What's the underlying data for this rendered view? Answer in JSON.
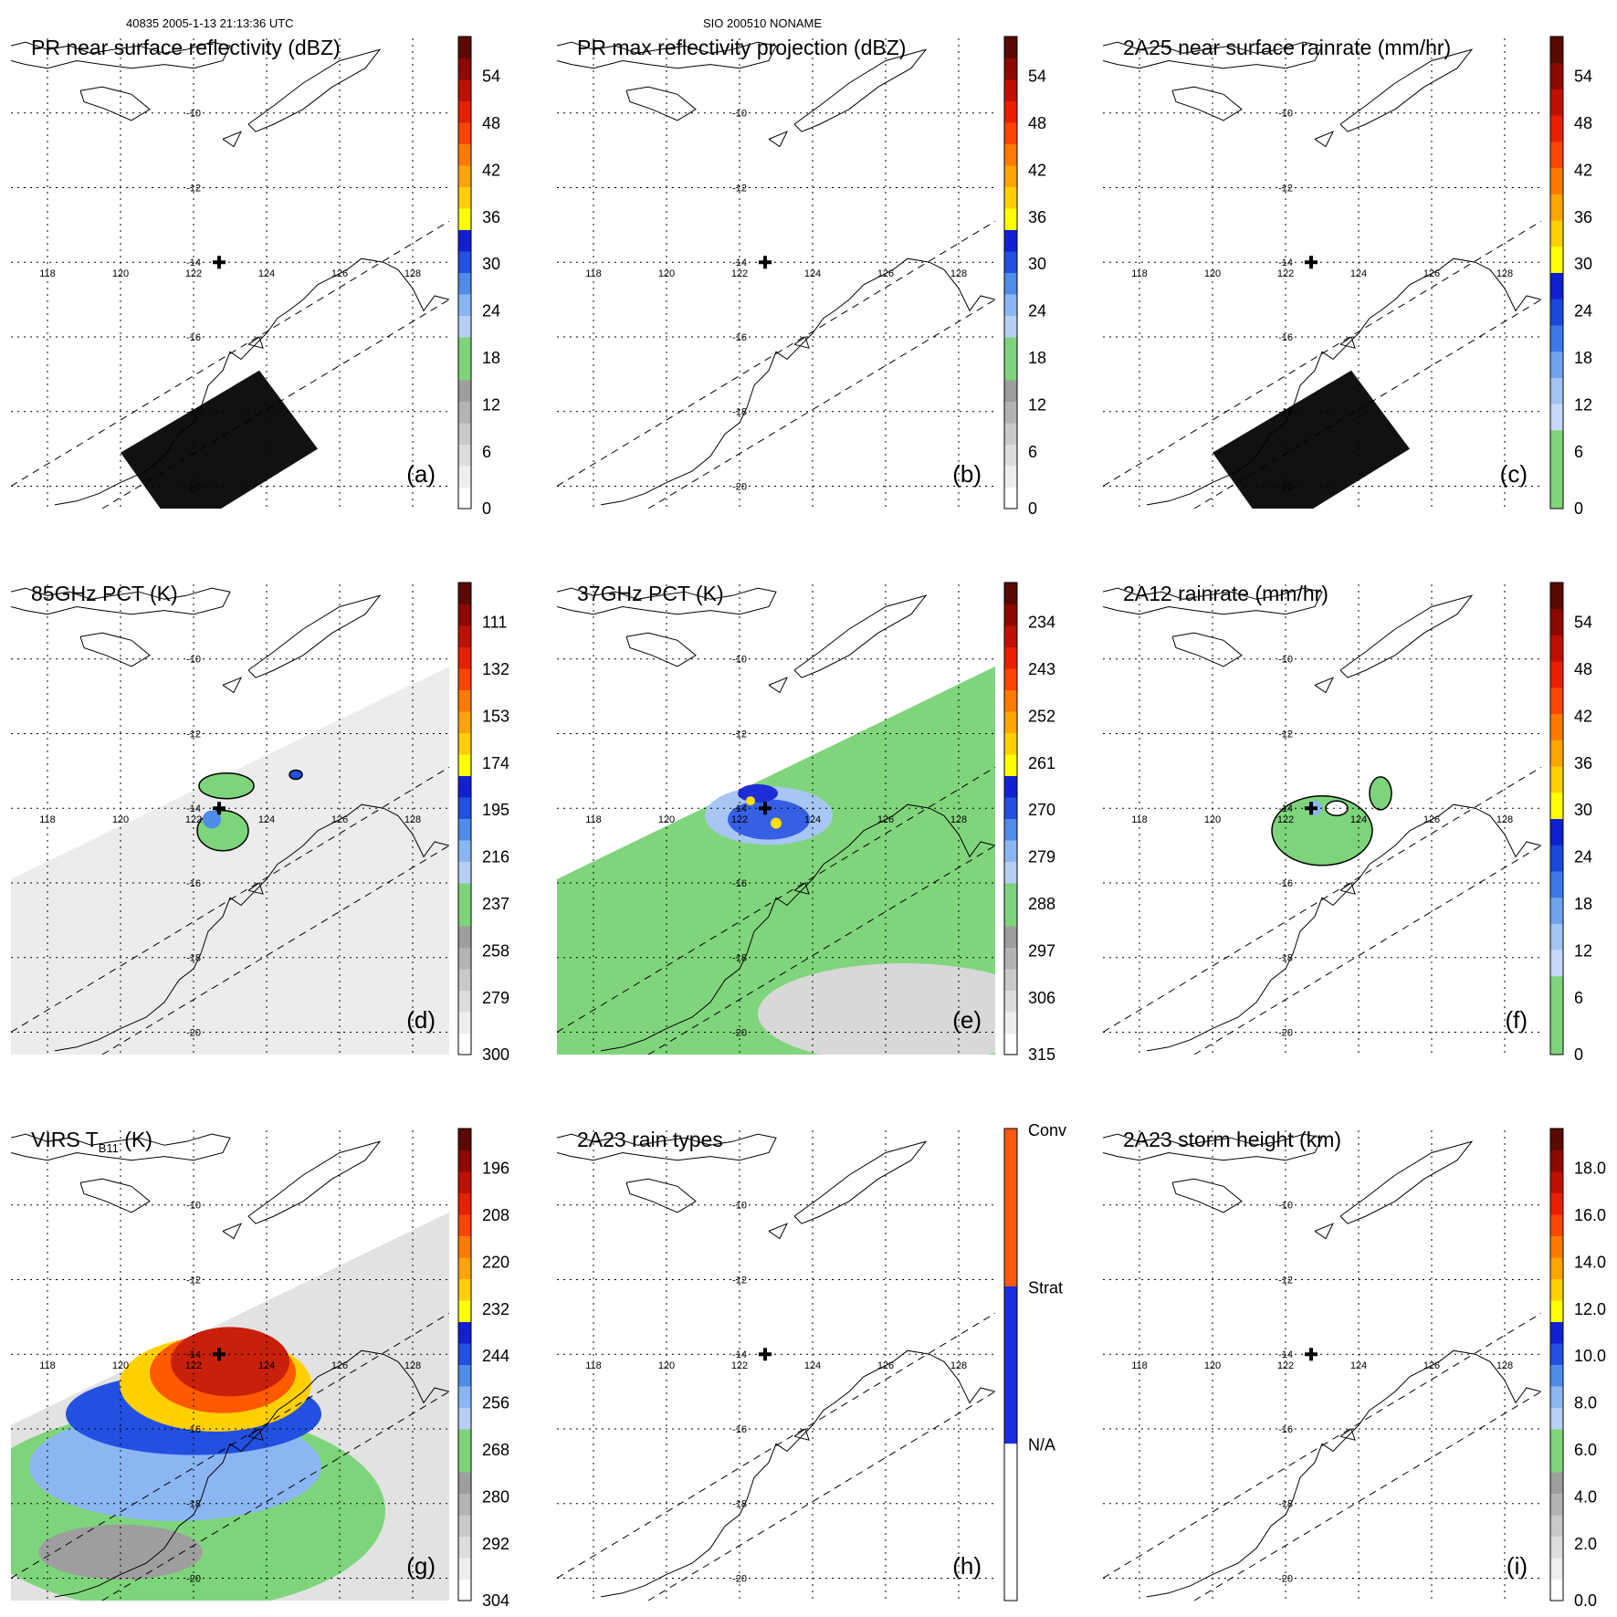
{
  "header": {
    "left": "40835 2005-1-13 21:13:36 UTC",
    "center": "SIO 200510 NONAME"
  },
  "map": {
    "lon_ticks": [
      "118",
      "120",
      "122",
      "124",
      "126",
      "128"
    ],
    "lat_ticks": [
      "-10",
      "-12",
      "-14",
      "-16",
      "-18",
      "-20"
    ],
    "lon_range": [
      117,
      129
    ],
    "lat_range": [
      -8,
      -20.6
    ],
    "storm_center": [
      122.7,
      -14
    ]
  },
  "panels": [
    {
      "id": "a",
      "title": "PR near surface reflectivity (dBZ)",
      "label": "(a)",
      "field": "pr_swath",
      "colorbar": {
        "ticks": [
          "54",
          "48",
          "42",
          "36",
          "30",
          "24",
          "18",
          "12",
          "6",
          "0"
        ],
        "colors": [
          "#ffffff",
          "#eeeeee",
          "#dddddd",
          "#c9c9c9",
          "#b3b3b3",
          "#9e9e9e",
          "#7ed47a",
          "#7ed47a",
          "#b8cff5",
          "#8bb6f2",
          "#4f8de9",
          "#2350e0",
          "#1220d4",
          "#ffff00",
          "#ffd000",
          "#ffa500",
          "#ff7a00",
          "#ff4500",
          "#e82000",
          "#c01000",
          "#8c0a00",
          "#5a0a00"
        ]
      }
    },
    {
      "id": "b",
      "title": "PR max reflectivity projection (dBZ)",
      "label": "(b)",
      "field": "empty",
      "colorbar": {
        "ticks": [
          "54",
          "48",
          "42",
          "36",
          "30",
          "24",
          "18",
          "12",
          "6",
          "0"
        ],
        "colors": [
          "#ffffff",
          "#eeeeee",
          "#dddddd",
          "#c9c9c9",
          "#b3b3b3",
          "#9e9e9e",
          "#7ed47a",
          "#7ed47a",
          "#b8cff5",
          "#8bb6f2",
          "#4f8de9",
          "#2350e0",
          "#1220d4",
          "#ffff00",
          "#ffd000",
          "#ffa500",
          "#ff7a00",
          "#ff4500",
          "#e82000",
          "#c01000",
          "#8c0a00",
          "#5a0a00"
        ]
      }
    },
    {
      "id": "c",
      "title": "2A25 near surface rainrate (mm/hr)",
      "label": "(c)",
      "field": "pr_swath",
      "colorbar": {
        "ticks": [
          "54",
          "48",
          "42",
          "36",
          "30",
          "24",
          "18",
          "12",
          "6",
          "0"
        ],
        "colors": [
          "#7ed47a",
          "#7ed47a",
          "#7ed47a",
          "#c8d8f8",
          "#a3c4f3",
          "#6fa3ee",
          "#3c78e6",
          "#1a47dc",
          "#0f1fd1",
          "#ffff00",
          "#ffd000",
          "#ffa500",
          "#ff7a00",
          "#ff4500",
          "#e82000",
          "#c01000",
          "#8c0a00",
          "#5a0a00"
        ]
      }
    },
    {
      "id": "d",
      "title": "85GHz PCT (K)",
      "label": "(d)",
      "field": "pct85",
      "colorbar": {
        "ticks": [
          "111",
          "132",
          "153",
          "174",
          "195",
          "216",
          "237",
          "258",
          "279",
          "300"
        ],
        "colors": [
          "#ffffff",
          "#eeeeee",
          "#dddddd",
          "#c9c9c9",
          "#b3b3b3",
          "#9e9e9e",
          "#7ed47a",
          "#7ed47a",
          "#b8cff5",
          "#8bb6f2",
          "#4f8de9",
          "#2350e0",
          "#1220d4",
          "#ffff00",
          "#ffd000",
          "#ffa500",
          "#ff7a00",
          "#ff4500",
          "#e82000",
          "#c01000",
          "#8c0a00",
          "#5a0a00"
        ]
      }
    },
    {
      "id": "e",
      "title": "37GHz PCT (K)",
      "label": "(e)",
      "field": "pct37",
      "colorbar": {
        "ticks": [
          "234",
          "243",
          "252",
          "261",
          "270",
          "279",
          "288",
          "297",
          "306",
          "315"
        ],
        "colors": [
          "#ffffff",
          "#eeeeee",
          "#dddddd",
          "#c9c9c9",
          "#b3b3b3",
          "#9e9e9e",
          "#7ed47a",
          "#7ed47a",
          "#b8cff5",
          "#8bb6f2",
          "#4f8de9",
          "#2350e0",
          "#1220d4",
          "#ffff00",
          "#ffd000",
          "#ffa500",
          "#ff7a00",
          "#ff4500",
          "#e82000",
          "#c01000",
          "#8c0a00",
          "#5a0a00"
        ]
      }
    },
    {
      "id": "f",
      "title": "2A12 rainrate (mm/hr)",
      "label": "(f)",
      "field": "rain2a12",
      "colorbar": {
        "ticks": [
          "54",
          "48",
          "42",
          "36",
          "30",
          "24",
          "18",
          "12",
          "6",
          "0"
        ],
        "colors": [
          "#7ed47a",
          "#7ed47a",
          "#7ed47a",
          "#c8d8f8",
          "#a3c4f3",
          "#6fa3ee",
          "#3c78e6",
          "#1a47dc",
          "#0f1fd1",
          "#ffff00",
          "#ffd000",
          "#ffa500",
          "#ff7a00",
          "#ff4500",
          "#e82000",
          "#c01000",
          "#8c0a00",
          "#5a0a00"
        ]
      }
    },
    {
      "id": "g",
      "title": "VIRS T",
      "title_sub": "B11",
      "title_end": " (K)",
      "label": "(g)",
      "field": "virs",
      "colorbar": {
        "ticks": [
          "196",
          "208",
          "220",
          "232",
          "244",
          "256",
          "268",
          "280",
          "292",
          "304"
        ],
        "colors": [
          "#ffffff",
          "#eeeeee",
          "#dddddd",
          "#c9c9c9",
          "#b3b3b3",
          "#9e9e9e",
          "#7ed47a",
          "#7ed47a",
          "#b8cff5",
          "#8bb6f2",
          "#4f8de9",
          "#2350e0",
          "#1220d4",
          "#ffff00",
          "#ffd000",
          "#ffa500",
          "#ff7a00",
          "#ff4500",
          "#e82000",
          "#c01000",
          "#8c0a00",
          "#5a0a00"
        ]
      }
    },
    {
      "id": "h",
      "title": "2A23 rain types",
      "label": "(h)",
      "field": "empty",
      "colorbar": {
        "categorical": true,
        "ticks": [
          "Conv",
          "Strat",
          "N/A"
        ],
        "colors": [
          "#ffffff",
          "#1a2ee0",
          "#ff5a10"
        ]
      }
    },
    {
      "id": "i",
      "title": "2A23 storm height (km)",
      "label": "(i)",
      "field": "empty",
      "colorbar": {
        "ticks": [
          "18.0",
          "16.0",
          "14.0",
          "12.0",
          "10.0",
          "8.0",
          "6.0",
          "4.0",
          "2.0",
          "0.0"
        ],
        "colors": [
          "#ffffff",
          "#eeeeee",
          "#dddddd",
          "#c9c9c9",
          "#b3b3b3",
          "#9e9e9e",
          "#7ed47a",
          "#7ed47a",
          "#b8cff5",
          "#8bb6f2",
          "#4f8de9",
          "#2350e0",
          "#1220d4",
          "#ffff00",
          "#ffd000",
          "#ffa500",
          "#ff7a00",
          "#ff4500",
          "#e82000",
          "#c01000",
          "#8c0a00",
          "#5a0a00"
        ]
      }
    }
  ]
}
